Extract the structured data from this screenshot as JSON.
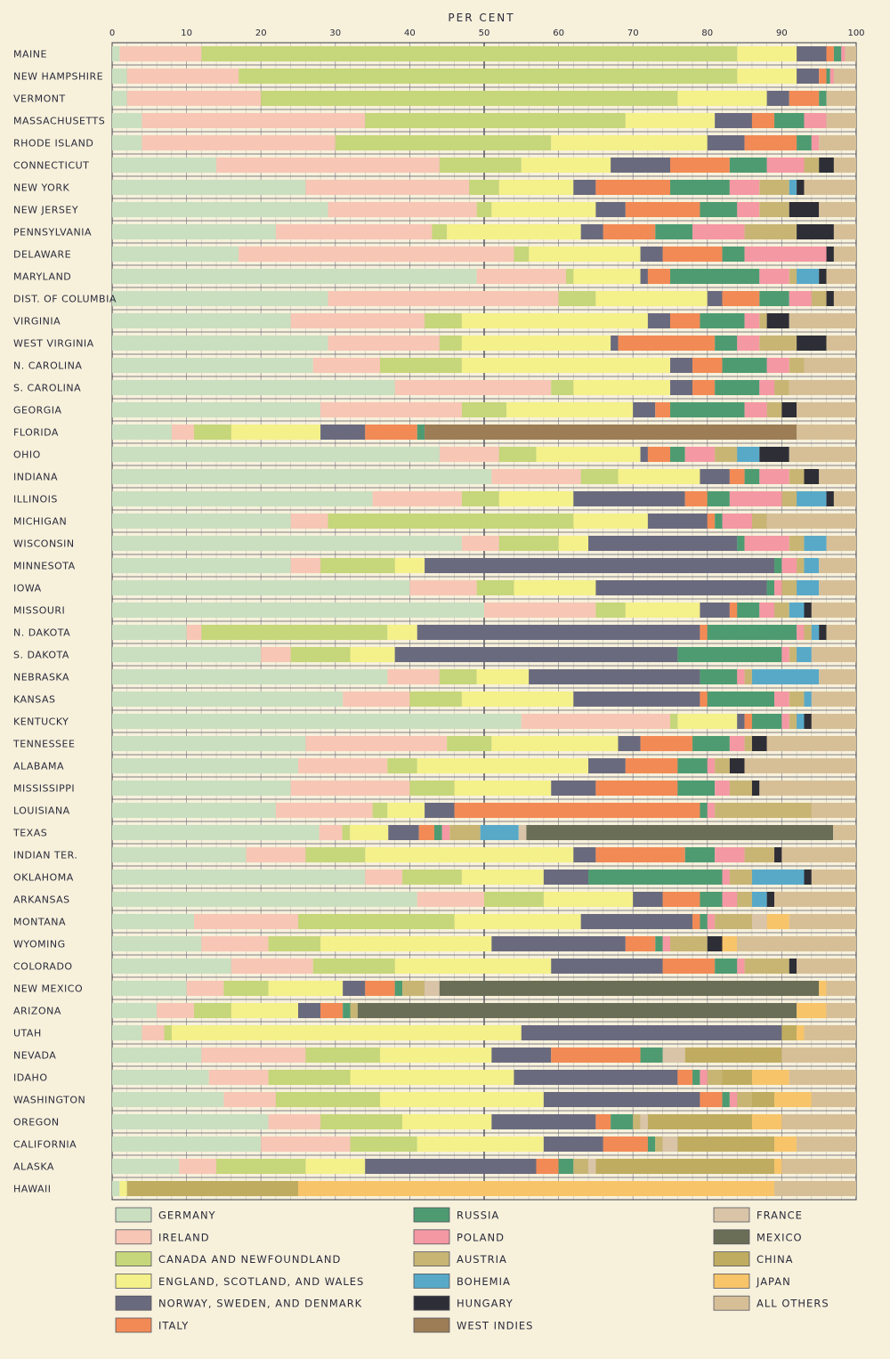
{
  "chart_data": {
    "type": "bar",
    "orientation": "horizontal",
    "stacked": true,
    "title": "PER CENT",
    "xlim": [
      0,
      100
    ],
    "xticks": [
      "0",
      "10",
      "20",
      "30",
      "40",
      "50",
      "60",
      "70",
      "80",
      "90",
      "100"
    ],
    "grid": true,
    "legend_position": "bottom",
    "series": [
      {
        "name": "GERMANY",
        "color": "#c9dfc0"
      },
      {
        "name": "IRELAND",
        "color": "#f7c6b5"
      },
      {
        "name": "CANADA AND NEWFOUNDLAND",
        "color": "#c6d67a"
      },
      {
        "name": "ENGLAND, SCOTLAND, AND WALES",
        "color": "#f4f08a"
      },
      {
        "name": "NORWAY, SWEDEN, AND DENMARK",
        "color": "#6a6a7e"
      },
      {
        "name": "ITALY",
        "color": "#f28a55"
      },
      {
        "name": "RUSSIA",
        "color": "#4e9b72"
      },
      {
        "name": "POLAND",
        "color": "#f498a4"
      },
      {
        "name": "AUSTRIA",
        "color": "#c8b574"
      },
      {
        "name": "BOHEMIA",
        "color": "#58a9c8"
      },
      {
        "name": "HUNGARY",
        "color": "#2e2e36"
      },
      {
        "name": "WEST INDIES",
        "color": "#9c7d55"
      },
      {
        "name": "FRANCE",
        "color": "#d9c4a8"
      },
      {
        "name": "MEXICO",
        "color": "#6a6e56"
      },
      {
        "name": "CHINA",
        "color": "#bfac60"
      },
      {
        "name": "JAPAN",
        "color": "#f7c46a"
      },
      {
        "name": "ALL OTHERS",
        "color": "#d6bf97"
      }
    ],
    "rows": [
      {
        "label": "MAINE",
        "values": [
          1,
          11,
          72,
          8,
          4,
          1,
          1,
          0.5,
          0,
          0,
          0,
          0,
          0,
          0,
          0,
          0,
          1.5
        ]
      },
      {
        "label": "NEW HAMPSHIRE",
        "values": [
          2,
          15,
          67,
          8,
          3,
          1,
          0.5,
          0.5,
          0,
          0,
          0,
          0,
          0,
          0,
          0,
          0,
          3
        ]
      },
      {
        "label": "VERMONT",
        "values": [
          2,
          18,
          56,
          12,
          3,
          4,
          1,
          0,
          0,
          0,
          0,
          0,
          0,
          0,
          0,
          0,
          4
        ]
      },
      {
        "label": "MASSACHUSETTS",
        "values": [
          4,
          30,
          35,
          12,
          5,
          3,
          4,
          3,
          0,
          0,
          0,
          0,
          0,
          0,
          0,
          0,
          4
        ]
      },
      {
        "label": "RHODE ISLAND",
        "values": [
          4,
          26,
          29,
          21,
          5,
          7,
          2,
          1,
          0,
          0,
          0,
          0,
          0,
          0,
          0,
          0,
          5
        ]
      },
      {
        "label": "CONNECTICUT",
        "values": [
          14,
          30,
          11,
          12,
          8,
          8,
          5,
          5,
          2,
          0,
          2,
          0,
          0,
          0,
          0,
          0,
          3
        ]
      },
      {
        "label": "NEW YORK",
        "values": [
          26,
          22,
          4,
          10,
          3,
          10,
          8,
          4,
          4,
          1,
          1,
          0,
          0,
          0,
          0,
          0,
          7
        ]
      },
      {
        "label": "NEW JERSEY",
        "values": [
          29,
          20,
          2,
          14,
          4,
          10,
          5,
          3,
          4,
          0,
          4,
          0,
          0,
          0,
          0,
          0,
          5
        ]
      },
      {
        "label": "PENNSYLVANIA",
        "values": [
          22,
          21,
          2,
          18,
          3,
          7,
          5,
          7,
          7,
          0,
          5,
          0,
          0,
          0,
          0,
          0,
          3
        ]
      },
      {
        "label": "DELAWARE",
        "values": [
          17,
          37,
          2,
          15,
          3,
          8,
          3,
          11,
          0,
          0,
          1,
          0,
          0,
          0,
          0,
          0,
          3
        ]
      },
      {
        "label": "MARYLAND",
        "values": [
          49,
          12,
          1,
          9,
          1,
          3,
          12,
          4,
          1,
          3,
          1,
          0,
          0,
          0,
          0,
          0,
          4
        ]
      },
      {
        "label": "DIST. OF COLUMBIA",
        "values": [
          29,
          31,
          5,
          15,
          2,
          5,
          4,
          3,
          2,
          0,
          1,
          0,
          0,
          0,
          0,
          0,
          3
        ]
      },
      {
        "label": "VIRGINIA",
        "values": [
          24,
          18,
          5,
          25,
          3,
          4,
          6,
          2,
          1,
          0,
          3,
          0,
          0,
          0,
          0,
          0,
          9
        ]
      },
      {
        "label": "WEST VIRGINIA",
        "values": [
          29,
          15,
          3,
          20,
          1,
          13,
          3,
          3,
          5,
          0,
          4,
          0,
          0,
          0,
          0,
          0,
          4
        ]
      },
      {
        "label": "N. CAROLINA",
        "values": [
          27,
          9,
          11,
          28,
          3,
          4,
          6,
          3,
          2,
          0,
          0,
          0,
          0,
          0,
          0,
          0,
          7
        ]
      },
      {
        "label": "S. CAROLINA",
        "values": [
          38,
          21,
          3,
          13,
          3,
          3,
          6,
          2,
          2,
          0,
          0,
          0,
          0,
          0,
          0,
          0,
          9
        ]
      },
      {
        "label": "GEORGIA",
        "values": [
          28,
          19,
          6,
          17,
          3,
          2,
          10,
          3,
          2,
          0,
          2,
          0,
          0,
          0,
          0,
          0,
          8
        ]
      },
      {
        "label": "FLORIDA",
        "values": [
          8,
          3,
          5,
          12,
          6,
          7,
          1,
          0,
          0,
          0,
          0,
          50,
          0,
          0,
          0,
          0,
          8
        ]
      },
      {
        "label": "OHIO",
        "values": [
          44,
          8,
          5,
          14,
          1,
          3,
          2,
          4,
          3,
          3,
          4,
          0,
          0,
          0,
          0,
          0,
          9
        ]
      },
      {
        "label": "INDIANA",
        "values": [
          51,
          12,
          5,
          11,
          4,
          2,
          2,
          4,
          2,
          0,
          2,
          0,
          0,
          0,
          0,
          0,
          5
        ]
      },
      {
        "label": "ILLINOIS",
        "values": [
          35,
          12,
          5,
          10,
          15,
          3,
          3,
          7,
          2,
          4,
          1,
          0,
          0,
          0,
          0,
          0,
          3
        ]
      },
      {
        "label": "MICHIGAN",
        "values": [
          24,
          5,
          33,
          10,
          8,
          1,
          1,
          4,
          2,
          0,
          0,
          0,
          0,
          0,
          0,
          0,
          12
        ]
      },
      {
        "label": "WISCONSIN",
        "values": [
          47,
          5,
          8,
          4,
          20,
          0,
          1,
          6,
          2,
          3,
          0,
          0,
          0,
          0,
          0,
          0,
          4
        ]
      },
      {
        "label": "MINNESOTA",
        "values": [
          24,
          4,
          10,
          4,
          47,
          0,
          1,
          2,
          1,
          2,
          0,
          0,
          0,
          0,
          0,
          0,
          5
        ]
      },
      {
        "label": "IOWA",
        "values": [
          40,
          9,
          5,
          11,
          23,
          0,
          1,
          1,
          2,
          3,
          0,
          0,
          0,
          0,
          0,
          0,
          5
        ]
      },
      {
        "label": "MISSOURI",
        "values": [
          50,
          15,
          4,
          10,
          4,
          1,
          3,
          2,
          2,
          2,
          1,
          0,
          0,
          0,
          0,
          0,
          6
        ]
      },
      {
        "label": "N. DAKOTA",
        "values": [
          10,
          2,
          25,
          4,
          38,
          1,
          12,
          1,
          1,
          1,
          1,
          0,
          0,
          0,
          0,
          0,
          4
        ]
      },
      {
        "label": "S. DAKOTA",
        "values": [
          20,
          4,
          8,
          6,
          38,
          0,
          14,
          1,
          1,
          2,
          0,
          0,
          0,
          0,
          0,
          0,
          6
        ]
      },
      {
        "label": "NEBRASKA",
        "values": [
          37,
          7,
          5,
          7,
          23,
          0,
          5,
          1,
          1,
          9,
          0,
          0,
          0,
          0,
          0,
          0,
          5
        ]
      },
      {
        "label": "KANSAS",
        "values": [
          31,
          9,
          7,
          15,
          17,
          1,
          9,
          2,
          2,
          1,
          0,
          0,
          0,
          0,
          0,
          0,
          6
        ]
      },
      {
        "label": "KENTUCKY",
        "values": [
          55,
          20,
          1,
          8,
          1,
          1,
          4,
          1,
          1,
          1,
          1,
          0,
          0,
          0,
          0,
          0,
          6
        ]
      },
      {
        "label": "TENNESSEE",
        "values": [
          26,
          19,
          6,
          17,
          3,
          7,
          5,
          2,
          1,
          0,
          2,
          0,
          0,
          0,
          0,
          0,
          12
        ]
      },
      {
        "label": "ALABAMA",
        "values": [
          25,
          12,
          4,
          23,
          5,
          7,
          4,
          1,
          2,
          0,
          2,
          0,
          0,
          0,
          0,
          0,
          15
        ]
      },
      {
        "label": "MISSISSIPPI",
        "values": [
          24,
          16,
          6,
          13,
          6,
          11,
          5,
          2,
          3,
          0,
          1,
          0,
          0,
          0,
          0,
          0,
          13
        ]
      },
      {
        "label": "LOUISIANA",
        "values": [
          22,
          13,
          2,
          5,
          4,
          33,
          1,
          1,
          13,
          0,
          0,
          0,
          0,
          0,
          0,
          0,
          6
        ]
      },
      {
        "label": "TEXAS",
        "values": [
          27,
          3,
          1,
          5,
          4,
          2,
          1,
          1,
          4,
          5,
          0,
          0,
          1,
          40,
          0,
          0,
          3
        ]
      },
      {
        "label": "INDIAN TER.",
        "values": [
          18,
          8,
          8,
          28,
          3,
          12,
          4,
          4,
          4,
          0,
          1,
          0,
          0,
          0,
          0,
          0,
          10
        ]
      },
      {
        "label": "OKLAHOMA",
        "values": [
          34,
          5,
          8,
          11,
          6,
          0,
          18,
          1,
          3,
          7,
          1,
          0,
          0,
          0,
          0,
          0,
          6
        ]
      },
      {
        "label": "ARKANSAS",
        "values": [
          41,
          9,
          8,
          12,
          4,
          5,
          3,
          2,
          2,
          2,
          1,
          0,
          0,
          0,
          0,
          0,
          11
        ]
      },
      {
        "label": "MONTANA",
        "values": [
          11,
          14,
          21,
          17,
          15,
          1,
          1,
          1,
          5,
          0,
          0,
          0,
          2,
          0,
          0,
          3,
          9
        ]
      },
      {
        "label": "WYOMING",
        "values": [
          12,
          9,
          7,
          23,
          18,
          4,
          1,
          1,
          5,
          0,
          2,
          0,
          0,
          0,
          0,
          2,
          16
        ]
      },
      {
        "label": "COLORADO",
        "values": [
          16,
          11,
          11,
          21,
          15,
          7,
          3,
          1,
          6,
          0,
          1,
          0,
          0,
          0,
          0,
          0,
          8
        ]
      },
      {
        "label": "NEW MEXICO",
        "values": [
          10,
          5,
          6,
          10,
          3,
          4,
          1,
          0,
          3,
          0,
          0,
          0,
          2,
          51,
          0,
          1,
          4
        ]
      },
      {
        "label": "ARIZONA",
        "values": [
          6,
          5,
          5,
          9,
          3,
          3,
          1,
          0,
          1,
          0,
          0,
          0,
          0,
          59,
          0,
          4,
          4
        ]
      },
      {
        "label": "UTAH",
        "values": [
          4,
          3,
          1,
          47,
          35,
          0,
          0,
          0,
          0,
          0,
          0,
          0,
          0,
          0,
          2,
          1,
          7
        ]
      },
      {
        "label": "NEVADA",
        "values": [
          12,
          14,
          10,
          15,
          8,
          12,
          3,
          0,
          0,
          0,
          0,
          0,
          3,
          0,
          13,
          0,
          10
        ]
      },
      {
        "label": "IDAHO",
        "values": [
          13,
          8,
          11,
          22,
          22,
          2,
          1,
          1,
          2,
          0,
          0,
          0,
          0,
          0,
          4,
          5,
          9
        ]
      },
      {
        "label": "WASHINGTON",
        "values": [
          15,
          7,
          14,
          22,
          21,
          3,
          1,
          1,
          2,
          0,
          0,
          0,
          0,
          0,
          3,
          5,
          6
        ]
      },
      {
        "label": "OREGON",
        "values": [
          21,
          7,
          11,
          12,
          14,
          2,
          3,
          0,
          1,
          0,
          0,
          0,
          1,
          0,
          14,
          4,
          10
        ]
      },
      {
        "label": "CALIFORNIA",
        "values": [
          20,
          12,
          9,
          17,
          8,
          6,
          1,
          0,
          1,
          0,
          0,
          0,
          2,
          0,
          13,
          3,
          8
        ]
      },
      {
        "label": "ALASKA",
        "values": [
          9,
          5,
          12,
          8,
          23,
          3,
          2,
          0,
          2,
          0,
          0,
          0,
          1,
          0,
          24,
          1,
          10
        ]
      },
      {
        "label": "HAWAII",
        "values": [
          1,
          0,
          0,
          1,
          0,
          0,
          0,
          0,
          0,
          0,
          0,
          0,
          0,
          0,
          23,
          64,
          11
        ]
      }
    ]
  }
}
